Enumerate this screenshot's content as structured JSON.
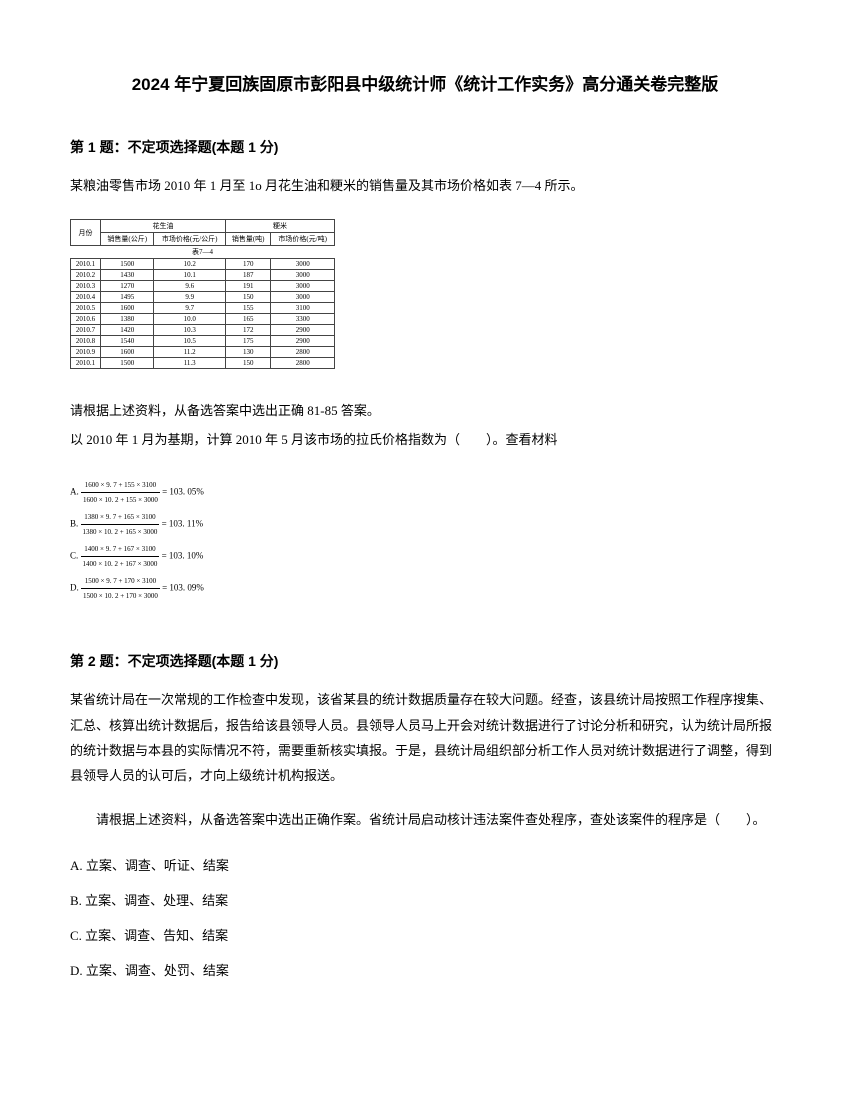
{
  "title": "2024 年宁夏回族固原市彭阳县中级统计师《统计工作实务》高分通关卷完整版",
  "q1": {
    "header": "第 1 题：不定项选择题(本题 1 分)",
    "intro": "某粮油零售市场 2010 年 1 月至 1o 月花生油和粳米的销售量及其市场价格如表 7—4 所示。",
    "table_caption": "表7—4",
    "col1": "月份",
    "group1": "花生油",
    "group2": "粳米",
    "sub_a": "销售量(公斤)",
    "sub_b": "市场价格(元/公斤)",
    "sub_c": "销售量(吨)",
    "sub_d": "市场价格(元/吨)",
    "rows": [
      [
        "2010.1",
        "1500",
        "10.2",
        "170",
        "3000"
      ],
      [
        "2010.2",
        "1430",
        "10.1",
        "187",
        "3000"
      ],
      [
        "2010.3",
        "1270",
        "9.6",
        "191",
        "3000"
      ],
      [
        "2010.4",
        "1495",
        "9.9",
        "150",
        "3000"
      ],
      [
        "2010.5",
        "1600",
        "9.7",
        "155",
        "3100"
      ],
      [
        "2010.6",
        "1380",
        "10.0",
        "165",
        "3300"
      ],
      [
        "2010.7",
        "1420",
        "10.3",
        "172",
        "2900"
      ],
      [
        "2010.8",
        "1540",
        "10.5",
        "175",
        "2900"
      ],
      [
        "2010.9",
        "1600",
        "11.2",
        "130",
        "2800"
      ],
      [
        "2010.1",
        "1500",
        "11.3",
        "150",
        "2800"
      ]
    ],
    "prompt1": "请根据上述资料，从备选答案中选出正确 81-85 答案。",
    "prompt2": "以 2010 年 1 月为基期，计算 2010 年 5 月该市场的拉氏价格指数为（　　）。查看材料",
    "opts": [
      {
        "label": "A.",
        "num": "1600 × 9. 7 + 155 × 3100",
        "den": "1600 × 10. 2 + 155 × 3000",
        "res": "= 103. 05%"
      },
      {
        "label": "B.",
        "num": "1380 × 9. 7 + 165 × 3100",
        "den": "1380 × 10. 2 + 165 × 3000",
        "res": "= 103. 11%"
      },
      {
        "label": "C.",
        "num": "1400 × 9. 7 + 167 × 3100",
        "den": "1400 × 10. 2 + 167 × 3000",
        "res": "= 103. 10%"
      },
      {
        "label": "D.",
        "num": "1500 × 9. 7 + 170 × 3100",
        "den": "1500 × 10. 2 + 170 × 3000",
        "res": "= 103. 09%"
      }
    ]
  },
  "q2": {
    "header": "第 2 题：不定项选择题(本题 1 分)",
    "body": "某省统计局在一次常规的工作检查中发现，该省某县的统计数据质量存在较大问题。经查，该县统计局按照工作程序搜集、汇总、核算出统计数据后，报告给该县领导人员。县领导人员马上开会对统计数据进行了讨论分析和研究，认为统计局所报的统计数据与本县的实际情况不符，需要重新核实填报。于是，县统计局组织部分析工作人员对统计数据进行了调整，得到县领导人员的认可后，才向上级统计机构报送。",
    "prompt": "请根据上述资料，从备选答案中选出正确作案。省统计局启动核计违法案件查处程序，查处该案件的程序是（　　）。",
    "options": [
      "A. 立案、调查、听证、结案",
      "B. 立案、调查、处理、结案",
      "C. 立案、调查、告知、结案",
      "D. 立案、调查、处罚、结案"
    ]
  }
}
